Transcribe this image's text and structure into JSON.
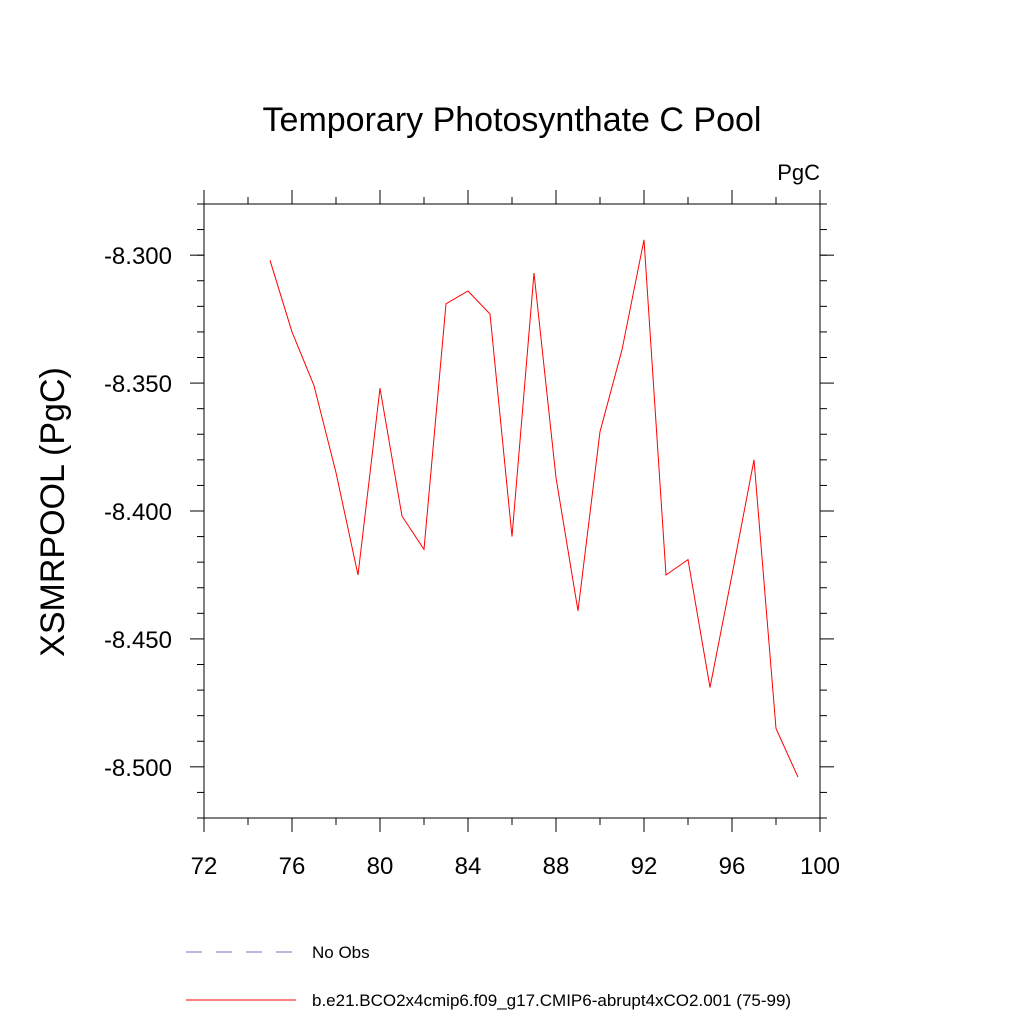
{
  "chart_data": {
    "type": "line",
    "title": "Temporary Photosynthate C Pool",
    "units_label": "PgC",
    "ylabel": "XSMRPOOL  (PgC)",
    "xlabel": "",
    "xlim": [
      72,
      100
    ],
    "ylim": [
      -8.52,
      -8.28
    ],
    "x_ticks": [
      72,
      76,
      80,
      84,
      88,
      92,
      96,
      100
    ],
    "x_tick_labels": [
      "72",
      "76",
      "80",
      "84",
      "88",
      "92",
      "96",
      "100"
    ],
    "y_ticks": [
      -8.3,
      -8.35,
      -8.4,
      -8.45,
      -8.5
    ],
    "y_tick_labels": [
      "-8.300",
      "-8.350",
      "-8.400",
      "-8.450",
      "-8.500"
    ],
    "grid": false,
    "legend_position": "bottom",
    "series": [
      {
        "name": "b.e21.BCO2x4cmip6.f09_g17.CMIP6-abrupt4xCO2.001 (75-99)",
        "color": "#ff0000",
        "style": "solid",
        "x": [
          75,
          76,
          77,
          78,
          79,
          80,
          81,
          82,
          83,
          84,
          85,
          86,
          87,
          88,
          89,
          90,
          91,
          92,
          93,
          94,
          95,
          96,
          97,
          98,
          99
        ],
        "y": [
          -8.302,
          -8.33,
          -8.351,
          -8.385,
          -8.425,
          -8.352,
          -8.402,
          -8.415,
          -8.319,
          -8.314,
          -8.323,
          -8.41,
          -8.307,
          -8.387,
          -8.439,
          -8.369,
          -8.337,
          -8.294,
          -8.425,
          -8.419,
          -8.469,
          -8.425,
          -8.38,
          -8.485,
          -8.504
        ]
      }
    ],
    "legend": [
      {
        "label": "No Obs",
        "color": "#7a6fb8",
        "style": "dashed"
      },
      {
        "label": "b.e21.BCO2x4cmip6.f09_g17.CMIP6-abrupt4xCO2.001 (75-99)",
        "color": "#ff0000",
        "style": "solid"
      }
    ]
  }
}
